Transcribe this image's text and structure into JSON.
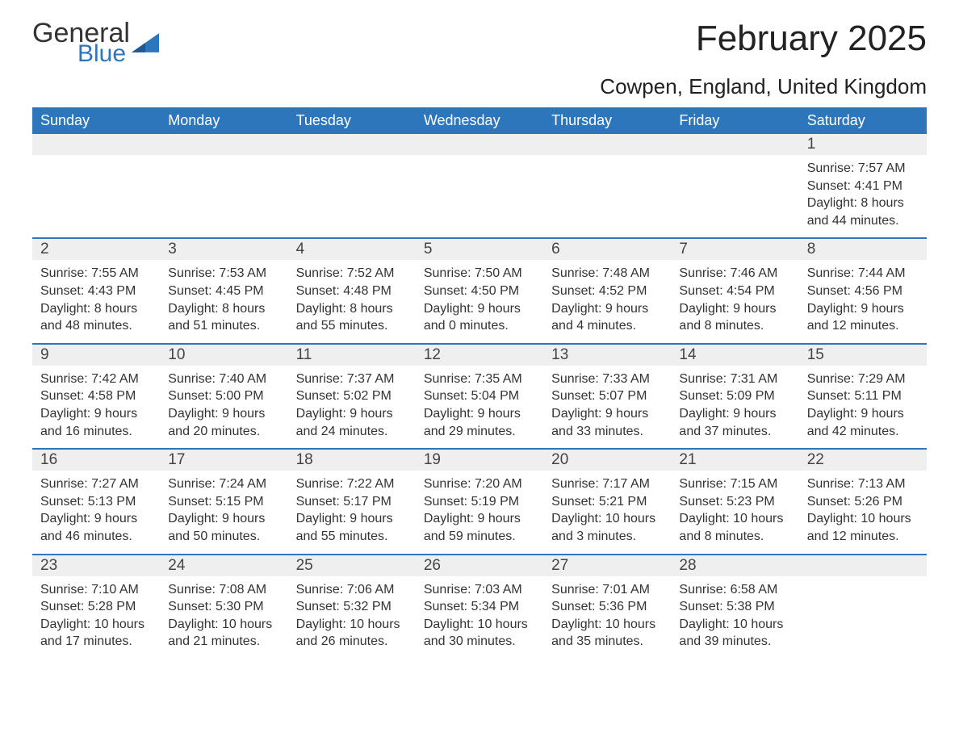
{
  "logo": {
    "word1": "General",
    "word2": "Blue"
  },
  "title": "February 2025",
  "subtitle": "Cowpen, England, United Kingdom",
  "colors": {
    "accent": "#2d76bb",
    "header_bg": "#2d76bb",
    "header_text": "#ffffff",
    "daynum_bg": "#efefef",
    "text": "#333333",
    "background": "#ffffff"
  },
  "weekdays": [
    "Sunday",
    "Monday",
    "Tuesday",
    "Wednesday",
    "Thursday",
    "Friday",
    "Saturday"
  ],
  "weeks": [
    [
      {
        "n": "",
        "sunrise": "",
        "sunset": "",
        "daylight": ""
      },
      {
        "n": "",
        "sunrise": "",
        "sunset": "",
        "daylight": ""
      },
      {
        "n": "",
        "sunrise": "",
        "sunset": "",
        "daylight": ""
      },
      {
        "n": "",
        "sunrise": "",
        "sunset": "",
        "daylight": ""
      },
      {
        "n": "",
        "sunrise": "",
        "sunset": "",
        "daylight": ""
      },
      {
        "n": "",
        "sunrise": "",
        "sunset": "",
        "daylight": ""
      },
      {
        "n": "1",
        "sunrise": "Sunrise: 7:57 AM",
        "sunset": "Sunset: 4:41 PM",
        "daylight": "Daylight: 8 hours and 44 minutes."
      }
    ],
    [
      {
        "n": "2",
        "sunrise": "Sunrise: 7:55 AM",
        "sunset": "Sunset: 4:43 PM",
        "daylight": "Daylight: 8 hours and 48 minutes."
      },
      {
        "n": "3",
        "sunrise": "Sunrise: 7:53 AM",
        "sunset": "Sunset: 4:45 PM",
        "daylight": "Daylight: 8 hours and 51 minutes."
      },
      {
        "n": "4",
        "sunrise": "Sunrise: 7:52 AM",
        "sunset": "Sunset: 4:48 PM",
        "daylight": "Daylight: 8 hours and 55 minutes."
      },
      {
        "n": "5",
        "sunrise": "Sunrise: 7:50 AM",
        "sunset": "Sunset: 4:50 PM",
        "daylight": "Daylight: 9 hours and 0 minutes."
      },
      {
        "n": "6",
        "sunrise": "Sunrise: 7:48 AM",
        "sunset": "Sunset: 4:52 PM",
        "daylight": "Daylight: 9 hours and 4 minutes."
      },
      {
        "n": "7",
        "sunrise": "Sunrise: 7:46 AM",
        "sunset": "Sunset: 4:54 PM",
        "daylight": "Daylight: 9 hours and 8 minutes."
      },
      {
        "n": "8",
        "sunrise": "Sunrise: 7:44 AM",
        "sunset": "Sunset: 4:56 PM",
        "daylight": "Daylight: 9 hours and 12 minutes."
      }
    ],
    [
      {
        "n": "9",
        "sunrise": "Sunrise: 7:42 AM",
        "sunset": "Sunset: 4:58 PM",
        "daylight": "Daylight: 9 hours and 16 minutes."
      },
      {
        "n": "10",
        "sunrise": "Sunrise: 7:40 AM",
        "sunset": "Sunset: 5:00 PM",
        "daylight": "Daylight: 9 hours and 20 minutes."
      },
      {
        "n": "11",
        "sunrise": "Sunrise: 7:37 AM",
        "sunset": "Sunset: 5:02 PM",
        "daylight": "Daylight: 9 hours and 24 minutes."
      },
      {
        "n": "12",
        "sunrise": "Sunrise: 7:35 AM",
        "sunset": "Sunset: 5:04 PM",
        "daylight": "Daylight: 9 hours and 29 minutes."
      },
      {
        "n": "13",
        "sunrise": "Sunrise: 7:33 AM",
        "sunset": "Sunset: 5:07 PM",
        "daylight": "Daylight: 9 hours and 33 minutes."
      },
      {
        "n": "14",
        "sunrise": "Sunrise: 7:31 AM",
        "sunset": "Sunset: 5:09 PM",
        "daylight": "Daylight: 9 hours and 37 minutes."
      },
      {
        "n": "15",
        "sunrise": "Sunrise: 7:29 AM",
        "sunset": "Sunset: 5:11 PM",
        "daylight": "Daylight: 9 hours and 42 minutes."
      }
    ],
    [
      {
        "n": "16",
        "sunrise": "Sunrise: 7:27 AM",
        "sunset": "Sunset: 5:13 PM",
        "daylight": "Daylight: 9 hours and 46 minutes."
      },
      {
        "n": "17",
        "sunrise": "Sunrise: 7:24 AM",
        "sunset": "Sunset: 5:15 PM",
        "daylight": "Daylight: 9 hours and 50 minutes."
      },
      {
        "n": "18",
        "sunrise": "Sunrise: 7:22 AM",
        "sunset": "Sunset: 5:17 PM",
        "daylight": "Daylight: 9 hours and 55 minutes."
      },
      {
        "n": "19",
        "sunrise": "Sunrise: 7:20 AM",
        "sunset": "Sunset: 5:19 PM",
        "daylight": "Daylight: 9 hours and 59 minutes."
      },
      {
        "n": "20",
        "sunrise": "Sunrise: 7:17 AM",
        "sunset": "Sunset: 5:21 PM",
        "daylight": "Daylight: 10 hours and 3 minutes."
      },
      {
        "n": "21",
        "sunrise": "Sunrise: 7:15 AM",
        "sunset": "Sunset: 5:23 PM",
        "daylight": "Daylight: 10 hours and 8 minutes."
      },
      {
        "n": "22",
        "sunrise": "Sunrise: 7:13 AM",
        "sunset": "Sunset: 5:26 PM",
        "daylight": "Daylight: 10 hours and 12 minutes."
      }
    ],
    [
      {
        "n": "23",
        "sunrise": "Sunrise: 7:10 AM",
        "sunset": "Sunset: 5:28 PM",
        "daylight": "Daylight: 10 hours and 17 minutes."
      },
      {
        "n": "24",
        "sunrise": "Sunrise: 7:08 AM",
        "sunset": "Sunset: 5:30 PM",
        "daylight": "Daylight: 10 hours and 21 minutes."
      },
      {
        "n": "25",
        "sunrise": "Sunrise: 7:06 AM",
        "sunset": "Sunset: 5:32 PM",
        "daylight": "Daylight: 10 hours and 26 minutes."
      },
      {
        "n": "26",
        "sunrise": "Sunrise: 7:03 AM",
        "sunset": "Sunset: 5:34 PM",
        "daylight": "Daylight: 10 hours and 30 minutes."
      },
      {
        "n": "27",
        "sunrise": "Sunrise: 7:01 AM",
        "sunset": "Sunset: 5:36 PM",
        "daylight": "Daylight: 10 hours and 35 minutes."
      },
      {
        "n": "28",
        "sunrise": "Sunrise: 6:58 AM",
        "sunset": "Sunset: 5:38 PM",
        "daylight": "Daylight: 10 hours and 39 minutes."
      },
      {
        "n": "",
        "sunrise": "",
        "sunset": "",
        "daylight": ""
      }
    ]
  ]
}
